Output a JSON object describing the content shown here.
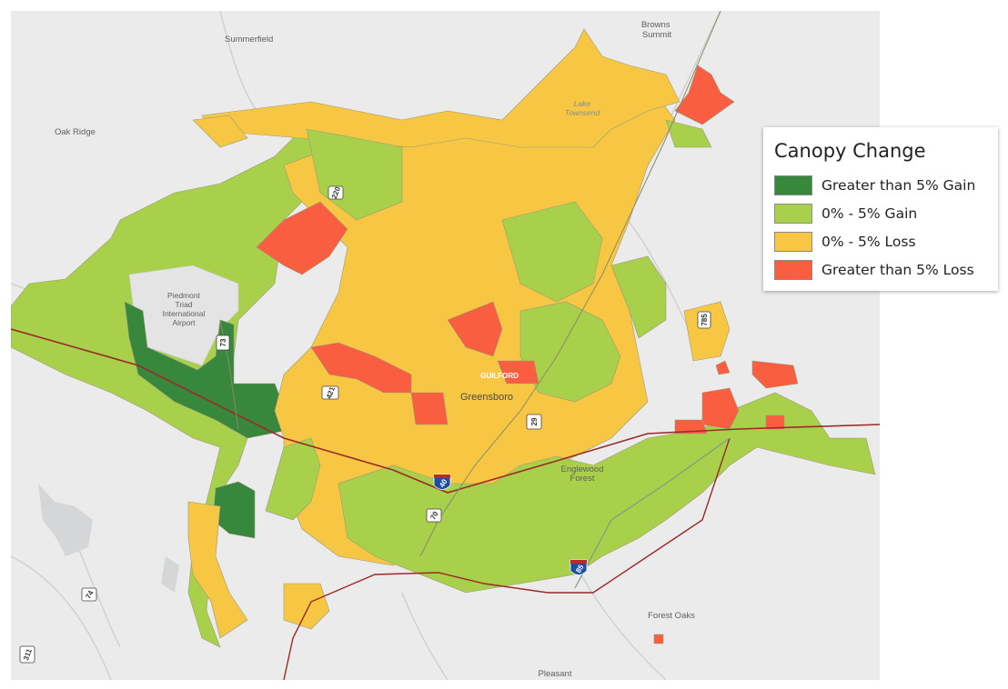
{
  "legend": {
    "title": "Canopy Change",
    "items": [
      {
        "label": "Greater than 5% Gain",
        "color": "#37873c"
      },
      {
        "label": "0% - 5% Gain",
        "color": "#a8d04a"
      },
      {
        "label": "0% - 5% Loss",
        "color": "#f7c744"
      },
      {
        "label": "Greater than 5% Loss",
        "color": "#f85e3f"
      }
    ]
  },
  "places": {
    "summerfield": "Summerfield",
    "browns_summit": "Browns\nSummit",
    "oak_ridge": "Oak Ridge",
    "lake_townsend": "Lake\nTownsend",
    "airport": "Piedmont\nTriad\nInternational\nAirport",
    "guilford": "GUILFORD",
    "greensboro": "Greensboro",
    "englewood_forest": "Englewood\nForest",
    "forest_oaks": "Forest Oaks",
    "pleasant": "Pleasant"
  },
  "route_shields": {
    "r220": "220",
    "r73": "73",
    "r421": "421",
    "r29": "29",
    "i40": "40",
    "r70": "70",
    "i85": "85",
    "r785": "785",
    "r74": "74",
    "r311": "311"
  }
}
